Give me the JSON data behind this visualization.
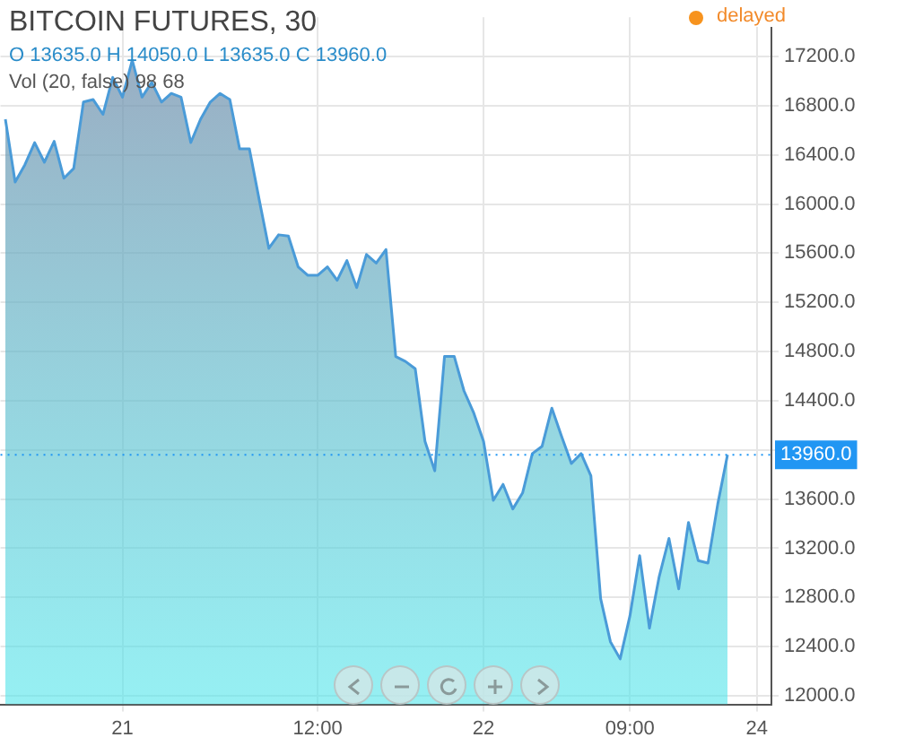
{
  "chart_data": {
    "type": "area",
    "title": "BITCOIN FUTURES, 30",
    "subtitle": "O 13635.0 H 14050.0 L 13635.0 C 13960.0",
    "categories": [
      null,
      null,
      null,
      null,
      null,
      null,
      null,
      null,
      null,
      null,
      null,
      null,
      "21",
      null,
      null,
      null,
      null,
      null,
      null,
      null,
      null,
      null,
      null,
      null,
      null,
      null,
      null,
      null,
      null,
      null,
      null,
      null,
      "12:00",
      null,
      null,
      null,
      null,
      null,
      null,
      null,
      null,
      null,
      null,
      null,
      null,
      null,
      null,
      null,
      null,
      "22",
      null,
      null,
      null,
      null,
      null,
      null,
      null,
      null,
      null,
      null,
      null,
      null,
      null,
      null,
      "09:00",
      null,
      null,
      null,
      null,
      null,
      null,
      null,
      null,
      null,
      null,
      null,
      null,
      "24",
      null
    ],
    "series": [
      {
        "color": "#4a9bd8",
        "values": [
          16690,
          16180,
          16320,
          16500,
          16340,
          16510,
          16210,
          16290,
          16830,
          16850,
          16730,
          17030,
          16870,
          17170,
          16870,
          16990,
          16830,
          16900,
          16870,
          16500,
          16690,
          16830,
          16900,
          16850,
          16450,
          16450,
          16040,
          15640,
          15750,
          15740,
          15490,
          15420,
          15420,
          15490,
          15380,
          15540,
          15320,
          15590,
          15520,
          15630,
          14760,
          14720,
          14660,
          14070,
          13830,
          14760,
          14760,
          14480,
          14300,
          14070,
          13590,
          13720,
          13520,
          13650,
          13970,
          14030,
          14340,
          14110,
          13890,
          13970,
          13790,
          12790,
          12440,
          12300,
          12650,
          13140,
          12550,
          12970,
          13280,
          12870,
          13410,
          13100,
          13080,
          13560,
          13960,
          null,
          null,
          null,
          null
        ]
      }
    ],
    "ylim": [
      11930,
      17520
    ],
    "yticks": [
      {
        "value": 12000,
        "label": "12000.0"
      },
      {
        "value": 12400,
        "label": "12400.0"
      },
      {
        "value": 12800,
        "label": "12800.0"
      },
      {
        "value": 13200,
        "label": "13200.0"
      },
      {
        "value": 13600,
        "label": "13600.0"
      },
      {
        "value": 14000,
        "label": null
      },
      {
        "value": 14400,
        "label": "14400.0"
      },
      {
        "value": 14800,
        "label": "14800.0"
      },
      {
        "value": 15200,
        "label": "15200.0"
      },
      {
        "value": 15600,
        "label": "15600.0"
      },
      {
        "value": 16000,
        "label": "16000.0"
      },
      {
        "value": 16400,
        "label": "16400.0"
      },
      {
        "value": 16800,
        "label": "16800.0"
      },
      {
        "value": 17200,
        "label": "17200.0"
      }
    ],
    "ref_lines": [
      {
        "axis": "y",
        "value": 13960,
        "label": "13960.0",
        "color": "#2196f3",
        "line_style": "dotted"
      }
    ],
    "annotations": [
      "delayed",
      "Vol (20, false) 98 68"
    ],
    "grid": true,
    "legend": false,
    "marker": "none",
    "line_style": "solid"
  }
}
